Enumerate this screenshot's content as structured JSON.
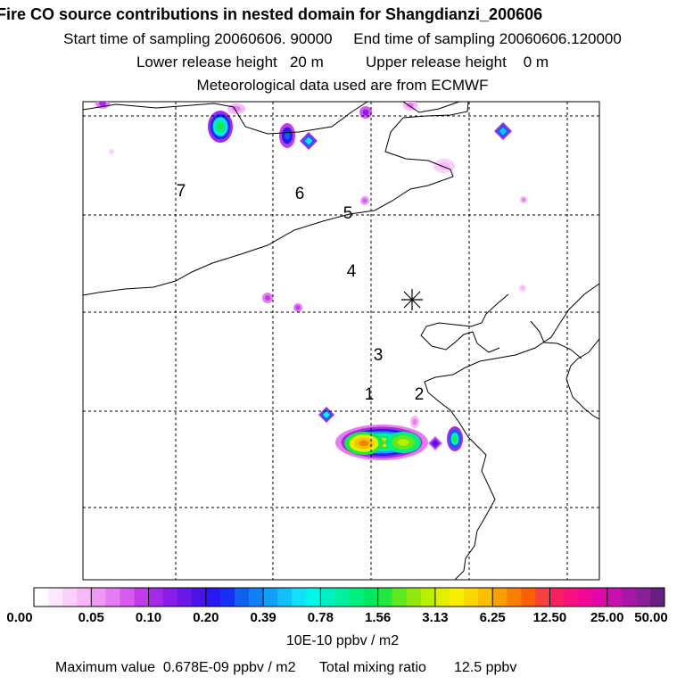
{
  "header": {
    "title": "Fire CO source contributions in nested domain for Shangdianzi_200606",
    "start_label": "Start time of sampling",
    "start_value": "20060606. 90000",
    "end_label": "End time of sampling",
    "end_value": "20060606.120000",
    "lower_label": "Lower release height",
    "lower_value": "20 m",
    "upper_label": "Upper release height",
    "upper_value": "0 m",
    "met_text": "Meteorological data used are from ECMWF"
  },
  "chart_data": {
    "type": "heatmap",
    "region_labels": [
      "1",
      "2",
      "3",
      "4",
      "5",
      "6",
      "7"
    ],
    "site_marker": "Shangdianzi receptor (asterisk)",
    "colorbar": {
      "tick_labels": [
        "0.00",
        "0.05",
        "0.10",
        "0.20",
        "0.39",
        "0.78",
        "1.56",
        "3.13",
        "6.25",
        "12.50",
        "25.00",
        "50.00"
      ],
      "colors": [
        "#ffffff",
        "#fde8fd",
        "#fbd0fb",
        "#f7b8f7",
        "#ee99f4",
        "#e57df2",
        "#d65cf0",
        "#c13be8",
        "#a52ae8",
        "#8a1ee8",
        "#6a18e8",
        "#4a14e8",
        "#2a18f0",
        "#1430f0",
        "#1060f0",
        "#1080f8",
        "#10a0f8",
        "#10c0f8",
        "#10e0f8",
        "#00f8e8",
        "#00f0c0",
        "#00f0a0",
        "#00f080",
        "#00e860",
        "#20e840",
        "#60e820",
        "#90e810",
        "#b8f000",
        "#e0f000",
        "#f8f000",
        "#f8d800",
        "#f8c000",
        "#f8a000",
        "#f88000",
        "#f86000",
        "#f84040",
        "#f82060",
        "#f81080",
        "#f00898",
        "#e008a8",
        "#c810b0",
        "#a818a8",
        "#882098",
        "#682080"
      ]
    },
    "units": "10E-10 ppbv / m2",
    "max_label": "Maximum value",
    "max_value": "0.678E-09 ppbv / m2",
    "total_label": "Total mixing ratio",
    "total_value": "12.5 ppbv",
    "hotspots": [
      {
        "level": 6,
        "desc": "south plume core west"
      },
      {
        "level": 5,
        "desc": "south plume core east"
      },
      {
        "level": 3,
        "desc": "northwest blob"
      },
      {
        "level": 2,
        "desc": "small cells"
      }
    ]
  }
}
